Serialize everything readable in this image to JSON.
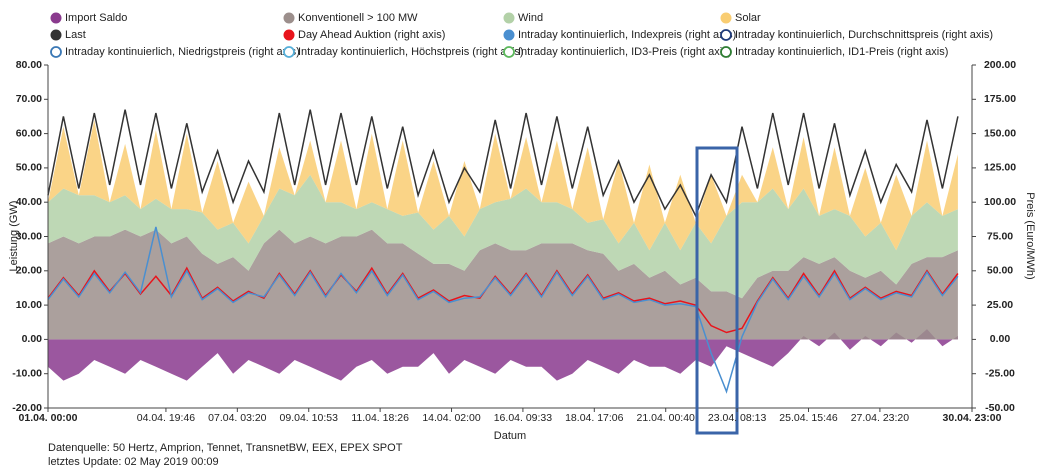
{
  "chart_data": {
    "type": "area",
    "xlabel": "Datum",
    "ylabel": "Leistung (GW)",
    "y2label": "Preis (Euro/MWh)",
    "x": [
      "01.04. 00:00",
      "01.04. 12:00",
      "02.04. 00:00",
      "02.04. 12:00",
      "03.04. 00:00",
      "03.04. 12:00",
      "04.04. 00:00",
      "04.04. 12:00",
      "05.04. 00:00",
      "05.04. 12:00",
      "06.04. 00:00",
      "06.04. 12:00",
      "07.04. 00:00",
      "07.04. 12:00",
      "08.04. 00:00",
      "08.04. 12:00",
      "09.04. 00:00",
      "09.04. 12:00",
      "10.04. 00:00",
      "10.04. 12:00",
      "11.04. 00:00",
      "11.04. 12:00",
      "12.04. 00:00",
      "12.04. 12:00",
      "13.04. 00:00",
      "13.04. 12:00",
      "14.04. 00:00",
      "14.04. 12:00",
      "15.04. 00:00",
      "15.04. 12:00",
      "16.04. 00:00",
      "16.04. 12:00",
      "17.04. 00:00",
      "17.04. 12:00",
      "18.04. 00:00",
      "18.04. 12:00",
      "19.04. 00:00",
      "19.04. 12:00",
      "20.04. 00:00",
      "20.04. 12:00",
      "21.04. 00:00",
      "21.04. 12:00",
      "22.04. 00:00",
      "22.04. 12:00",
      "23.04. 00:00",
      "23.04. 12:00",
      "24.04. 00:00",
      "24.04. 12:00",
      "25.04. 00:00",
      "25.04. 12:00",
      "26.04. 00:00",
      "26.04. 12:00",
      "27.04. 00:00",
      "27.04. 12:00",
      "28.04. 00:00",
      "28.04. 12:00",
      "29.04. 00:00",
      "29.04. 12:00",
      "30.04. 00:00",
      "30.04. 12:00"
    ],
    "xlim": [
      "01.04. 00:00",
      "30.04. 23:00"
    ],
    "xticks": [
      "01.04. 00:00",
      "04.04. 19:46",
      "07.04. 03:20",
      "09.04. 10:53",
      "11.04. 18:26",
      "14.04. 02:00",
      "16.04. 09:33",
      "18.04. 17:06",
      "21.04. 00:40",
      "23.04. 08:13",
      "25.04. 15:46",
      "27.04. 23:20",
      "30.04. 23:00"
    ],
    "ylim": [
      -20,
      80
    ],
    "yticks": [
      {
        "value": 80,
        "label": "80.00"
      },
      {
        "value": 70,
        "label": "70.00"
      },
      {
        "value": 60,
        "label": "60.00"
      },
      {
        "value": 50,
        "label": "50.00"
      },
      {
        "value": 40,
        "label": "40.00"
      },
      {
        "value": 30,
        "label": "30.00"
      },
      {
        "value": 20,
        "label": "20.00"
      },
      {
        "value": 10,
        "label": "10.00"
      },
      {
        "value": 0,
        "label": "0.00"
      },
      {
        "value": -10,
        "label": "-10.00"
      },
      {
        "value": -20,
        "label": "-20.00"
      }
    ],
    "y2lim": [
      -50,
      200
    ],
    "y2ticks": [
      {
        "value": 200,
        "label": "200.00"
      },
      {
        "value": 175,
        "label": "175.00"
      },
      {
        "value": 150,
        "label": "150.00"
      },
      {
        "value": 125,
        "label": "125.00"
      },
      {
        "value": 100,
        "label": "100.00"
      },
      {
        "value": 75,
        "label": "75.00"
      },
      {
        "value": 50,
        "label": "50.00"
      },
      {
        "value": 25,
        "label": "25.00"
      },
      {
        "value": 0,
        "label": "0.00"
      },
      {
        "value": -25,
        "label": "-25.00"
      },
      {
        "value": -50,
        "label": "-50.00"
      }
    ],
    "series": [
      {
        "name": "Import Saldo",
        "color": "#8a3a8e",
        "kind": "area",
        "values": [
          -8,
          -12,
          -10,
          -6,
          -8,
          -10,
          -6,
          -8,
          -10,
          -12,
          -8,
          -4,
          -10,
          -6,
          -8,
          -10,
          -6,
          -8,
          -10,
          -12,
          -8,
          -6,
          -10,
          -8,
          -8,
          -4,
          -10,
          -6,
          -8,
          -10,
          -6,
          -8,
          -8,
          -12,
          -10,
          -6,
          -8,
          -10,
          -6,
          -8,
          -8,
          -10,
          -6,
          -8,
          -2,
          -4,
          -6,
          -8,
          -4,
          1,
          -2,
          2,
          -3,
          1,
          -2,
          2,
          -1,
          3,
          -2,
          1
        ]
      },
      {
        "name": "Konventionell > 100 MW",
        "color": "#9c8f8c",
        "kind": "area",
        "stack": true,
        "values": [
          28,
          30,
          28,
          30,
          30,
          32,
          30,
          32,
          28,
          30,
          25,
          22,
          24,
          20,
          28,
          32,
          28,
          30,
          28,
          30,
          30,
          32,
          28,
          28,
          25,
          22,
          22,
          20,
          26,
          28,
          26,
          26,
          28,
          28,
          28,
          26,
          25,
          20,
          22,
          18,
          20,
          16,
          18,
          14,
          14,
          12,
          18,
          20,
          20,
          24,
          22,
          24,
          20,
          18,
          20,
          16,
          22,
          24,
          24,
          26
        ]
      },
      {
        "name": "Wind",
        "color": "#b3d1a8",
        "kind": "area",
        "stack": true,
        "values": [
          12,
          14,
          14,
          12,
          10,
          10,
          8,
          9,
          10,
          8,
          12,
          10,
          10,
          8,
          8,
          12,
          14,
          18,
          12,
          10,
          8,
          8,
          10,
          8,
          12,
          10,
          14,
          10,
          12,
          12,
          15,
          18,
          12,
          12,
          10,
          8,
          10,
          8,
          12,
          8,
          14,
          10,
          16,
          14,
          22,
          28,
          22,
          24,
          18,
          20,
          14,
          14,
          16,
          12,
          14,
          10,
          14,
          16,
          12,
          12
        ]
      },
      {
        "name": "Solar",
        "color": "#f9cd72",
        "kind": "area",
        "stack": true,
        "values": [
          0,
          18,
          0,
          22,
          0,
          15,
          0,
          20,
          0,
          22,
          0,
          20,
          0,
          18,
          0,
          12,
          0,
          10,
          0,
          18,
          0,
          20,
          0,
          22,
          0,
          20,
          0,
          22,
          0,
          20,
          0,
          15,
          0,
          18,
          0,
          22,
          0,
          24,
          0,
          25,
          0,
          22,
          0,
          20,
          0,
          8,
          0,
          12,
          0,
          15,
          0,
          18,
          0,
          20,
          0,
          22,
          0,
          18,
          0,
          16
        ]
      },
      {
        "name": "Last",
        "color": "#333333",
        "kind": "line",
        "values": [
          42,
          65,
          44,
          66,
          45,
          67,
          45,
          66,
          44,
          63,
          43,
          55,
          40,
          52,
          43,
          66,
          45,
          67,
          45,
          66,
          45,
          65,
          44,
          62,
          42,
          55,
          40,
          50,
          43,
          64,
          44,
          66,
          45,
          65,
          44,
          62,
          42,
          52,
          40,
          48,
          38,
          45,
          36,
          48,
          40,
          62,
          44,
          66,
          45,
          66,
          44,
          63,
          42,
          55,
          40,
          51,
          43,
          64,
          44,
          65
        ]
      },
      {
        "name": "Day Ahead Auktion (right axis)",
        "color": "#e8141c",
        "kind": "line",
        "axis": "y2",
        "values": [
          30,
          45,
          32,
          50,
          35,
          48,
          33,
          46,
          32,
          52,
          30,
          38,
          28,
          35,
          30,
          48,
          33,
          50,
          32,
          47,
          35,
          52,
          33,
          48,
          30,
          36,
          28,
          32,
          30,
          46,
          33,
          48,
          32,
          50,
          33,
          47,
          30,
          34,
          28,
          30,
          26,
          28,
          25,
          10,
          5,
          8,
          28,
          45,
          30,
          48,
          32,
          50,
          30,
          38,
          30,
          35,
          32,
          50,
          33,
          48
        ]
      },
      {
        "name": "Intraday kontinuierlich, Indexpreis (right axis)",
        "color": "#4a8fd0",
        "kind": "line",
        "axis": "y2",
        "values": [
          29,
          44,
          31,
          48,
          34,
          49,
          34,
          82,
          31,
          50,
          29,
          37,
          27,
          34,
          31,
          47,
          32,
          49,
          31,
          48,
          34,
          50,
          32,
          47,
          29,
          35,
          27,
          30,
          31,
          45,
          32,
          47,
          31,
          49,
          32,
          46,
          29,
          33,
          27,
          29,
          25,
          26,
          24,
          -10,
          -38,
          2,
          27,
          44,
          29,
          46,
          31,
          48,
          29,
          37,
          29,
          34,
          31,
          49,
          32,
          46
        ]
      },
      {
        "name": "Intraday kontinuierlich, Durchschnittspreis (right axis)",
        "color": "#1f3b7a",
        "kind": "line",
        "axis": "y2",
        "visible": false
      },
      {
        "name": "Intraday kontinuierlich, Niedrigstpreis (right axis)",
        "color": "#3a78b5",
        "kind": "line",
        "axis": "y2",
        "visible": false
      },
      {
        "name": "Intraday kontinuierlich, Höchstpreis (right axis)",
        "color": "#56aed8",
        "kind": "line",
        "axis": "y2",
        "visible": false
      },
      {
        "name": "Intraday kontinuierlich, ID3-Preis (right axis)",
        "color": "#5cb85c",
        "kind": "line",
        "axis": "y2",
        "visible": false
      },
      {
        "name": "Intraday kontinuierlich, ID1-Preis (right axis)",
        "color": "#2e7d32",
        "kind": "line",
        "axis": "y2",
        "visible": false
      }
    ]
  },
  "footer": {
    "source": "Datenquelle: 50 Hertz, Amprion, Tennet, TransnetBW, EEX, EPEX SPOT",
    "updated": "letztes Update: 02 May 2019 00:09"
  }
}
